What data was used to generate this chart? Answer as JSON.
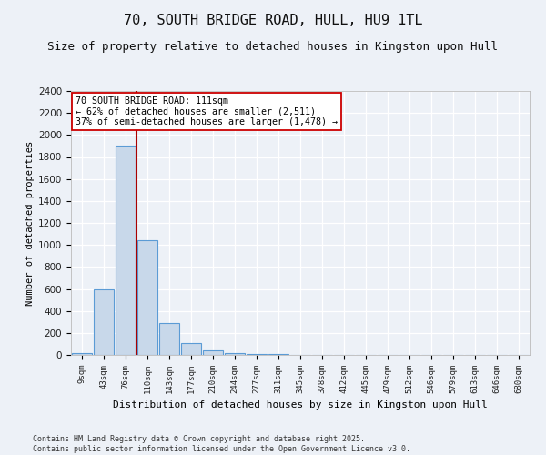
{
  "title": "70, SOUTH BRIDGE ROAD, HULL, HU9 1TL",
  "subtitle": "Size of property relative to detached houses in Kingston upon Hull",
  "xlabel": "Distribution of detached houses by size in Kingston upon Hull",
  "ylabel": "Number of detached properties",
  "bin_labels": [
    "9sqm",
    "43sqm",
    "76sqm",
    "110sqm",
    "143sqm",
    "177sqm",
    "210sqm",
    "244sqm",
    "277sqm",
    "311sqm",
    "345sqm",
    "378sqm",
    "412sqm",
    "445sqm",
    "479sqm",
    "512sqm",
    "546sqm",
    "579sqm",
    "613sqm",
    "646sqm",
    "680sqm"
  ],
  "bar_values": [
    20,
    600,
    1900,
    1040,
    290,
    110,
    45,
    20,
    10,
    10,
    0,
    0,
    0,
    0,
    0,
    0,
    0,
    0,
    0,
    0,
    0
  ],
  "bar_color": "#c8d8ea",
  "bar_edge_color": "#5b9bd5",
  "vline_x": 2.5,
  "vline_color": "#aa0000",
  "annotation_text": "70 SOUTH BRIDGE ROAD: 111sqm\n← 62% of detached houses are smaller (2,511)\n37% of semi-detached houses are larger (1,478) →",
  "annotation_box_color": "#ffffff",
  "annotation_box_edge": "#cc0000",
  "ylim": [
    0,
    2400
  ],
  "yticks": [
    0,
    200,
    400,
    600,
    800,
    1000,
    1200,
    1400,
    1600,
    1800,
    2000,
    2200,
    2400
  ],
  "background_color": "#edf1f7",
  "grid_color": "#ffffff",
  "footer_line1": "Contains HM Land Registry data © Crown copyright and database right 2025.",
  "footer_line2": "Contains public sector information licensed under the Open Government Licence v3.0.",
  "title_fontsize": 11,
  "subtitle_fontsize": 9,
  "bar_width": 0.95
}
